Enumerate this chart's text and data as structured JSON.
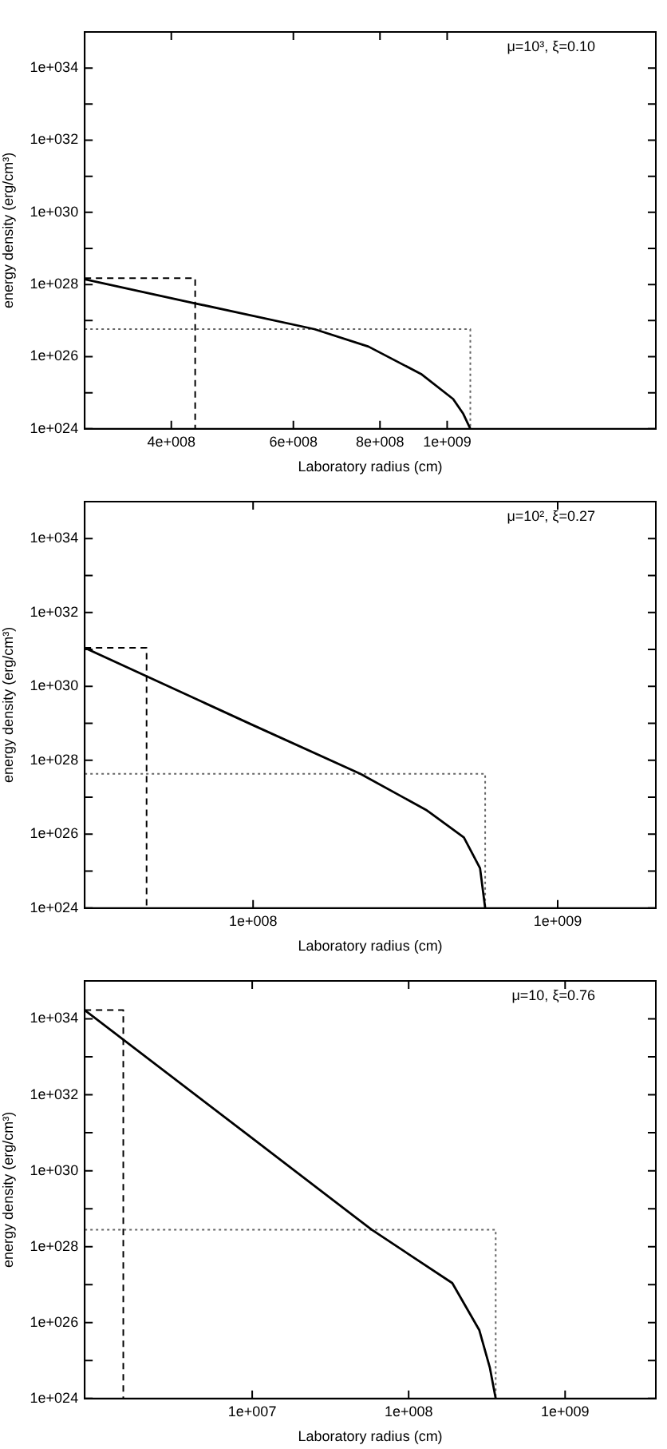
{
  "chart_data": [
    {
      "type": "line",
      "xlabel": "Laboratory radius (cm)",
      "ylabel": "energy density (erg/cm³)",
      "annotations": [
        "μ=10³, ξ=0.10"
      ],
      "log": "xy",
      "grid": false,
      "legend": false,
      "marker": "none",
      "xlim": [
        300000000.0,
        2000000000.0
      ],
      "xticks": [
        {
          "value": 400000000.0,
          "label": "4e+008"
        },
        {
          "value": 600000000.0,
          "label": "6e+008"
        },
        {
          "value": 800000000.0,
          "label": "8e+008"
        },
        {
          "value": 1000000000.0,
          "label": "1e+009"
        }
      ],
      "ylim": [
        1e+24,
        1e+35
      ],
      "yticks": [
        {
          "value": 1e+24,
          "label": "1e+024"
        },
        {
          "value": 1e+25,
          "label": null
        },
        {
          "value": 1e+26,
          "label": "1e+026"
        },
        {
          "value": 1e+27,
          "label": null
        },
        {
          "value": 1e+28,
          "label": "1e+028"
        },
        {
          "value": 1e+29,
          "label": null
        },
        {
          "value": 1e+30,
          "label": "1e+030"
        },
        {
          "value": 1e+31,
          "label": null
        },
        {
          "value": 1e+32,
          "label": "1e+032"
        },
        {
          "value": 1e+33,
          "label": null
        },
        {
          "value": 1e+34,
          "label": "1e+034"
        }
      ],
      "series": [
        {
          "color": "#000000",
          "line_style": "solid",
          "x": [
            300000000.0,
            433000000.0,
            643000000.0,
            770000000.0,
            917000000.0,
            1020000000.0,
            1055000000.0,
            1080000000.0
          ],
          "values": [
            1.4e+28,
            3e+27,
            5.8e+26,
            1.9e+26,
            3.3e+25,
            6.7e+24,
            2.6e+24,
            1e+24
          ]
        },
        {
          "color": "#000000",
          "line_style": "dashed",
          "x": [
            300000000.0,
            433000000.0,
            433000000.0
          ],
          "values": [
            1.5e+28,
            1.5e+28,
            1e+24
          ]
        },
        {
          "color": "#666666",
          "line_style": "dotted",
          "x": [
            300000000.0,
            1080000000.0,
            1080000000.0
          ],
          "values": [
            5.8e+26,
            5.8e+26,
            1e+24
          ]
        }
      ]
    },
    {
      "type": "line",
      "xlabel": "Laboratory radius (cm)",
      "ylabel": "energy density (erg/cm³)",
      "annotations": [
        "μ=10², ξ=0.27"
      ],
      "log": "xy",
      "grid": false,
      "legend": false,
      "marker": "none",
      "xlim": [
        28000000.0,
        2100000000.0
      ],
      "xticks": [
        {
          "value": 100000000.0,
          "label": "1e+008"
        },
        {
          "value": 1000000000.0,
          "label": "1e+009"
        }
      ],
      "ylim": [
        1e+24,
        1e+35
      ],
      "yticks": [
        {
          "value": 1e+24,
          "label": "1e+024"
        },
        {
          "value": 1e+25,
          "label": null
        },
        {
          "value": 1e+26,
          "label": "1e+026"
        },
        {
          "value": 1e+27,
          "label": null
        },
        {
          "value": 1e+28,
          "label": "1e+028"
        },
        {
          "value": 1e+29,
          "label": null
        },
        {
          "value": 1e+30,
          "label": "1e+030"
        },
        {
          "value": 1e+31,
          "label": null
        },
        {
          "value": 1e+32,
          "label": "1e+032"
        },
        {
          "value": 1e+33,
          "label": null
        },
        {
          "value": 1e+34,
          "label": "1e+034"
        }
      ],
      "series": [
        {
          "color": "#000000",
          "line_style": "solid",
          "x": [
            28000000.0,
            100000000.0,
            225000000.0,
            372000000.0,
            492000000.0,
            556000000.0,
            578000000.0
          ],
          "values": [
            1.1e+31,
            8.9e+28,
            4.3e+27,
            4.4e+26,
            8.2e+25,
            1.2e+25,
            1e+24
          ]
        },
        {
          "color": "#000000",
          "line_style": "dashed",
          "x": [
            28000000.0,
            44700000.0,
            44700000.0
          ],
          "values": [
            1.1e+31,
            1.1e+31,
            1e+24
          ]
        },
        {
          "color": "#666666",
          "line_style": "dotted",
          "x": [
            28000000.0,
            578000000.0,
            578000000.0
          ],
          "values": [
            4.3e+27,
            4.3e+27,
            1e+24
          ]
        }
      ]
    },
    {
      "type": "line",
      "xlabel": "Laboratory radius (cm)",
      "ylabel": "energy density (erg/cm³)",
      "annotations": [
        "μ=10, ξ=0.76"
      ],
      "log": "xy",
      "grid": false,
      "legend": false,
      "marker": "none",
      "xlim": [
        850000.0,
        3800000000.0
      ],
      "xticks": [
        {
          "value": 10000000.0,
          "label": "1e+007"
        },
        {
          "value": 100000000.0,
          "label": "1e+008"
        },
        {
          "value": 1000000000.0,
          "label": "1e+009"
        }
      ],
      "ylim": [
        1e+24,
        1e+35
      ],
      "yticks": [
        {
          "value": 1e+24,
          "label": "1e+024"
        },
        {
          "value": 1e+25,
          "label": null
        },
        {
          "value": 1e+26,
          "label": "1e+026"
        },
        {
          "value": 1e+27,
          "label": null
        },
        {
          "value": 1e+28,
          "label": "1e+028"
        },
        {
          "value": 1e+29,
          "label": null
        },
        {
          "value": 1e+30,
          "label": "1e+030"
        },
        {
          "value": 1e+31,
          "label": null
        },
        {
          "value": 1e+32,
          "label": "1e+032"
        },
        {
          "value": 1e+33,
          "label": null
        },
        {
          "value": 1e+34,
          "label": "1e+034"
        }
      ],
      "series": [
        {
          "color": "#000000",
          "line_style": "solid",
          "x": [
            850000.0,
            10000000.0,
            58000000.0,
            190000000.0,
            283000000.0,
            330000000.0,
            360000000.0
          ],
          "values": [
            1.7e+34,
            7.2e+30,
            2.8e+28,
            1.1e+27,
            6.3e+25,
            6.6e+24,
            1e+24
          ]
        },
        {
          "color": "#000000",
          "line_style": "dashed",
          "x": [
            850000.0,
            1500000.0,
            1500000.0
          ],
          "values": [
            1.7e+34,
            1.7e+34,
            1e+24
          ]
        },
        {
          "color": "#666666",
          "line_style": "dotted",
          "x": [
            850000.0,
            360000000.0,
            360000000.0
          ],
          "values": [
            2.8e+28,
            2.8e+28,
            1e+24
          ]
        }
      ]
    }
  ]
}
